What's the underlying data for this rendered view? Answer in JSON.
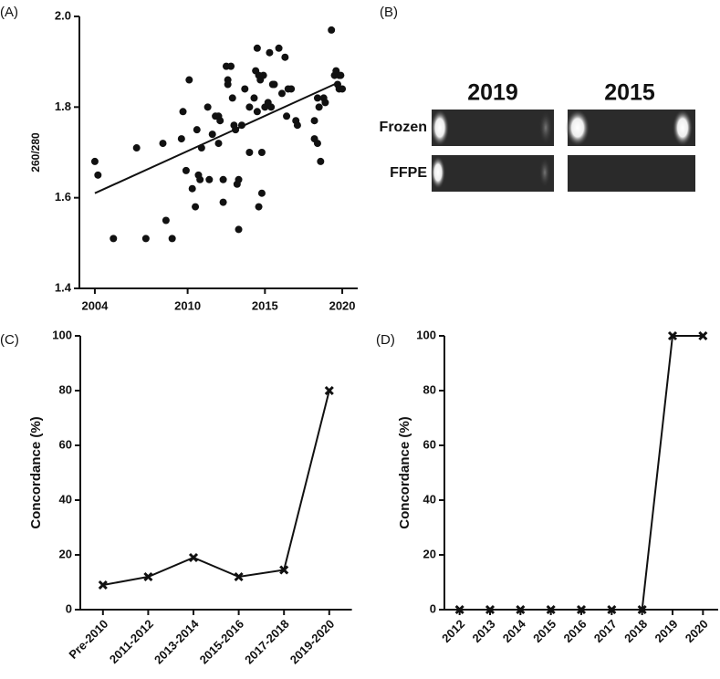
{
  "chart_data": [
    {
      "type": "scatter",
      "label": "(A)",
      "ylabel": "260/280",
      "color": "#111",
      "x": [
        2004.0,
        2004.2,
        2005.2,
        2006.7,
        2007.3,
        2008.4,
        2008.6,
        2009.0,
        2009.6,
        2009.7,
        2009.9,
        2010.1,
        2010.3,
        2010.5,
        2010.6,
        2010.7,
        2010.8,
        2010.9,
        2011.3,
        2011.4,
        2011.6,
        2011.8,
        2012.0,
        2012.0,
        2012.1,
        2012.3,
        2012.3,
        2012.5,
        2012.6,
        2012.6,
        2012.8,
        2012.9,
        2013.0,
        2013.1,
        2013.2,
        2013.3,
        2013.3,
        2013.5,
        2013.7,
        2014.0,
        2014.0,
        2014.3,
        2014.4,
        2014.5,
        2014.5,
        2014.6,
        2014.6,
        2014.7,
        2014.8,
        2014.8,
        2014.9,
        2015.0,
        2015.2,
        2015.3,
        2015.4,
        2015.5,
        2015.6,
        2015.9,
        2016.1,
        2016.3,
        2016.4,
        2016.5,
        2016.7,
        2017.0,
        2017.1,
        2018.2,
        2018.2,
        2018.4,
        2018.4,
        2018.5,
        2018.6,
        2018.8,
        2018.9,
        2019.3,
        2019.5,
        2019.6,
        2019.7,
        2019.8,
        2019.8,
        2019.9,
        2020.0
      ],
      "values": [
        1.68,
        1.65,
        1.51,
        1.71,
        1.51,
        1.72,
        1.55,
        1.51,
        1.73,
        1.79,
        1.66,
        1.86,
        1.62,
        1.58,
        1.75,
        1.65,
        1.64,
        1.71,
        1.8,
        1.64,
        1.74,
        1.78,
        1.72,
        1.78,
        1.77,
        1.64,
        1.59,
        1.89,
        1.86,
        1.85,
        1.89,
        1.82,
        1.76,
        1.75,
        1.63,
        1.64,
        1.53,
        1.76,
        1.84,
        1.8,
        1.7,
        1.82,
        1.88,
        1.79,
        1.93,
        1.58,
        1.87,
        1.86,
        1.7,
        1.61,
        1.87,
        1.8,
        1.81,
        1.92,
        1.8,
        1.85,
        1.85,
        1.93,
        1.83,
        1.91,
        1.78,
        1.84,
        1.84,
        1.77,
        1.76,
        1.77,
        1.73,
        1.72,
        1.82,
        1.8,
        1.68,
        1.82,
        1.81,
        1.97,
        1.87,
        1.88,
        1.85,
        1.87,
        1.84,
        1.87,
        1.84
      ],
      "trendline": {
        "x": [
          2004,
          2019.8
        ],
        "values": [
          1.61,
          1.855
        ]
      },
      "xlim": [
        2003,
        2021
      ],
      "xticks": [
        2004,
        2010,
        2015,
        2020
      ],
      "ylim": [
        1.4,
        2.0
      ],
      "yticks": [
        1.4,
        1.6,
        1.8,
        {
          "value": 2.0,
          "label": "2.0"
        }
      ]
    },
    {
      "type": "line",
      "label": "(C)",
      "ylabel": "Concordance (%)",
      "color": "#111",
      "categories": [
        "Pre-2010",
        "2011-2012",
        "2013-2014",
        "2015-2016",
        "2017-2018",
        "2019-2020"
      ],
      "values": [
        9,
        12,
        19,
        12,
        14.5,
        80
      ],
      "ylim": [
        0,
        100
      ],
      "yticks": [
        0,
        20,
        40,
        60,
        80,
        100
      ]
    },
    {
      "type": "line",
      "label": "(D)",
      "ylabel": "Concordance (%)",
      "color": "#111",
      "categories": [
        "2012",
        "2013",
        "2014",
        "2015",
        "2016",
        "2017",
        "2018",
        "2019",
        "2020"
      ],
      "values": [
        0,
        0,
        0,
        0,
        0,
        0,
        0,
        100,
        100
      ],
      "ylim": [
        0,
        100
      ],
      "yticks": [
        0,
        20,
        40,
        60,
        80,
        100
      ]
    }
  ],
  "gel": {
    "label": "(B)",
    "columns": [
      "2019",
      "2015"
    ],
    "rows": [
      "Frozen",
      "FFPE"
    ]
  }
}
